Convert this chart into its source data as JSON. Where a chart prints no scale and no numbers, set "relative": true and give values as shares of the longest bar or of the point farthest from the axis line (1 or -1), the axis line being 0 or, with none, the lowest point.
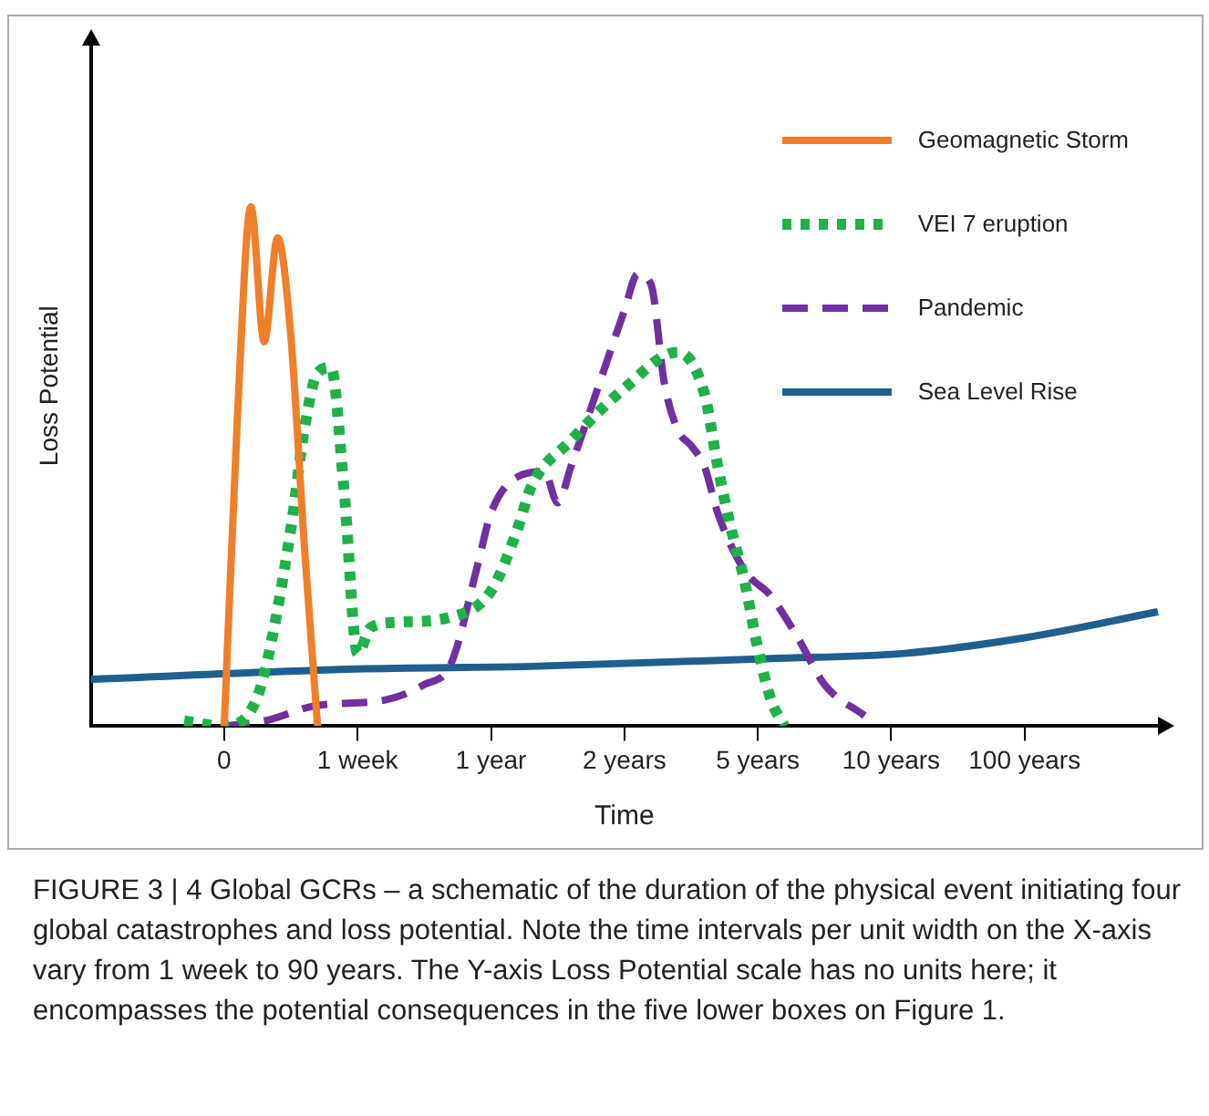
{
  "chart_data": {
    "type": "line",
    "relative": true,
    "xlabel": "Time",
    "ylabel": "Loss Potential",
    "categories": [
      null,
      null,
      null,
      null,
      null,
      null,
      null,
      null,
      null,
      null,
      "0",
      null,
      null,
      null,
      null,
      null,
      null,
      null,
      null,
      null,
      "1 week",
      null,
      null,
      null,
      null,
      null,
      null,
      null,
      null,
      null,
      "1 year",
      null,
      null,
      null,
      null,
      null,
      null,
      null,
      null,
      null,
      "2 years",
      null,
      null,
      null,
      null,
      null,
      null,
      null,
      null,
      null,
      "5 years",
      null,
      null,
      null,
      null,
      null,
      null,
      null,
      null,
      null,
      "10 years",
      null,
      null,
      null,
      null,
      null,
      null,
      null,
      null,
      null,
      "100 years",
      null,
      null,
      null,
      null,
      null,
      null,
      null,
      null,
      null,
      null
    ],
    "legend": "top right",
    "marker": "none",
    "series": [
      {
        "name": "Geomagnetic Storm",
        "color": "#f07f2a",
        "line_style": "solid",
        "values": [
          null,
          null,
          null,
          null,
          null,
          null,
          null,
          null,
          null,
          null,
          0,
          0.6,
          1,
          0.74,
          0.94,
          0.75,
          0.35,
          0,
          null,
          null,
          null,
          null,
          null,
          null,
          null,
          null,
          null,
          null,
          null,
          null,
          null,
          null,
          null,
          null,
          null,
          null,
          null,
          null,
          null,
          null,
          null,
          null,
          null,
          null,
          null,
          null,
          null,
          null,
          null,
          null,
          null,
          null,
          null,
          null,
          null,
          null,
          null,
          null,
          null,
          null,
          null,
          null,
          null,
          null,
          null,
          null,
          null,
          null,
          null,
          null,
          null,
          null,
          null,
          null,
          null,
          null,
          null,
          null,
          null,
          null,
          null
        ]
      },
      {
        "name": "VEI 7 eruption",
        "color": "#1fb14a",
        "line_style": "dotted",
        "values": [
          null,
          null,
          null,
          null,
          null,
          null,
          null,
          0.01,
          null,
          null,
          0,
          null,
          0.03,
          0.1,
          null,
          0.38,
          0.57,
          0.68,
          0.69,
          0.45,
          0.14,
          0.19,
          null,
          0.2,
          null,
          null,
          null,
          0.21,
          null,
          null,
          0.26,
          null,
          0.38,
          0.46,
          null,
          null,
          0.55,
          null,
          null,
          null,
          0.65,
          null,
          null,
          null,
          0.72,
          null,
          0.64,
          0.5,
          0.38,
          0.28,
          0.15,
          0.05,
          0,
          null,
          null,
          null,
          null,
          null,
          null,
          null,
          null,
          null,
          null,
          null,
          null,
          null,
          null,
          null,
          null,
          null,
          null,
          null,
          null,
          null,
          null,
          null,
          null,
          null,
          null,
          null,
          null
        ]
      },
      {
        "name": "Pandemic",
        "color": "#7030a0",
        "line_style": "dashed",
        "values": [
          null,
          null,
          null,
          null,
          null,
          null,
          null,
          null,
          null,
          null,
          0,
          null,
          null,
          0.01,
          null,
          null,
          null,
          0.04,
          null,
          null,
          null,
          null,
          0.05,
          null,
          null,
          0.08,
          null,
          0.12,
          null,
          0.31,
          0.41,
          null,
          0.48,
          null,
          0.49,
          0.43,
          0.5,
          null,
          0.65,
          null,
          0.8,
          0.87,
          0.85,
          0.66,
          0.57,
          0.54,
          0.5,
          0.41,
          null,
          0.3,
          null,
          0.25,
          null,
          0.17,
          null,
          0.08,
          null,
          null,
          0.02,
          null,
          null,
          null,
          null,
          null,
          null,
          null,
          null,
          null,
          null,
          null,
          null,
          null,
          null,
          null,
          null,
          null,
          null,
          null,
          null,
          null,
          null
        ]
      },
      {
        "name": "Sea Level Rise",
        "color": "#1f5f8f",
        "line_style": "solid",
        "values": [
          0.09,
          null,
          null,
          null,
          null,
          null,
          null,
          null,
          null,
          null,
          null,
          null,
          null,
          null,
          null,
          null,
          null,
          null,
          null,
          null,
          0.11,
          null,
          null,
          null,
          null,
          null,
          null,
          null,
          null,
          null,
          null,
          null,
          null,
          0.115,
          null,
          null,
          null,
          null,
          null,
          null,
          null,
          null,
          null,
          null,
          null,
          null,
          null,
          null,
          null,
          null,
          null,
          0.13,
          null,
          null,
          null,
          null,
          null,
          null,
          null,
          null,
          null,
          0.14,
          null,
          null,
          null,
          null,
          null,
          null,
          null,
          null,
          0.17,
          null,
          null,
          null,
          null,
          null,
          null,
          null,
          null,
          null,
          0.22
        ]
      }
    ],
    "annotations": [
      "FIGURE 3 | 4 Global GCRs – a schematic of the duration of the physical event initiating four global catastrophes and loss potential. Note the time intervals per unit width on the X-axis vary from 1 week to 90 years. The Y-axis Loss Potential scale has no units here; it encompasses the potential consequences in the five lower boxes on Figure 1."
    ]
  }
}
